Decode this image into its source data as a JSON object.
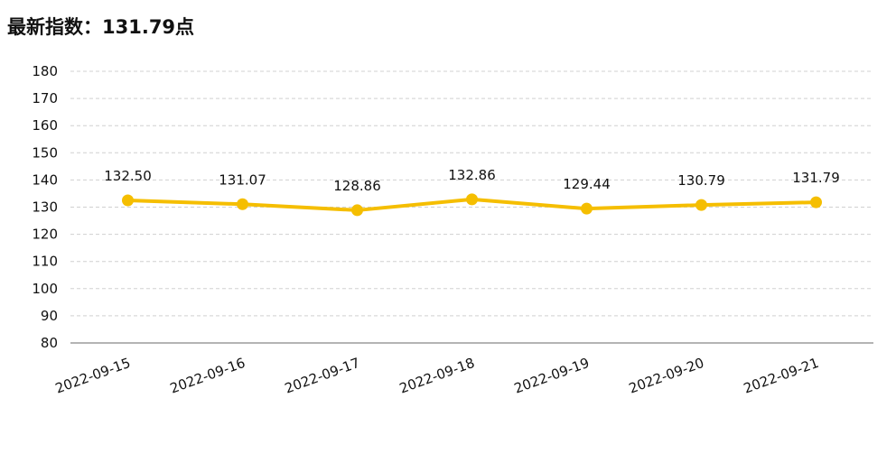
{
  "header": {
    "title": "最新指数：131.79点"
  },
  "chart_data": {
    "type": "line",
    "title": "最新指数：131.79点",
    "xlabel": "",
    "ylabel": "",
    "categories": [
      "2022-09-15",
      "2022-09-16",
      "2022-09-17",
      "2022-09-18",
      "2022-09-19",
      "2022-09-20",
      "2022-09-21"
    ],
    "series": [
      {
        "values": [
          132.5,
          131.07,
          128.86,
          132.86,
          129.44,
          130.79,
          131.79
        ]
      }
    ],
    "data_labels": [
      "132.50",
      "131.07",
      "128.86",
      "132.86",
      "129.44",
      "130.79",
      "131.79"
    ],
    "ylim": [
      80,
      180
    ],
    "yticks": [
      80,
      90,
      100,
      110,
      120,
      130,
      140,
      150,
      160,
      170,
      180
    ],
    "grid": true,
    "legend": "none",
    "colors": {
      "line": "#F5BE00",
      "grid": "#D0D0D0",
      "axis": "#888888",
      "text": "#111111"
    }
  }
}
